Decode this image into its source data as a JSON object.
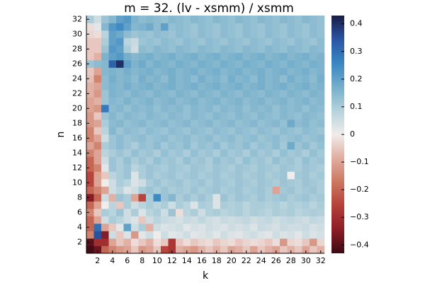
{
  "chart_data": {
    "type": "heatmap",
    "title": "m = 32. (lv - xsmm) / xsmm",
    "x_label": "k",
    "y_label": "n",
    "x": [
      1,
      2,
      3,
      4,
      5,
      6,
      7,
      8,
      9,
      10,
      11,
      12,
      13,
      14,
      15,
      16,
      17,
      18,
      19,
      20,
      21,
      22,
      23,
      24,
      25,
      26,
      27,
      28,
      29,
      30,
      31,
      32
    ],
    "y": [
      1,
      2,
      3,
      4,
      5,
      6,
      7,
      8,
      9,
      10,
      11,
      12,
      13,
      14,
      15,
      16,
      17,
      18,
      19,
      20,
      21,
      22,
      23,
      24,
      25,
      26,
      27,
      28,
      29,
      30,
      31,
      32
    ],
    "xlim": [
      0.5,
      32.5
    ],
    "ylim": [
      0.5,
      32.5
    ],
    "xticks": [
      2,
      4,
      6,
      8,
      10,
      12,
      14,
      16,
      18,
      20,
      22,
      24,
      26,
      28,
      30,
      32
    ],
    "yticks": [
      2,
      4,
      6,
      8,
      10,
      12,
      14,
      16,
      18,
      20,
      22,
      24,
      26,
      28,
      30,
      32
    ],
    "clim": [
      -0.43,
      0.43
    ],
    "cticks": [
      {
        "value": -0.4,
        "label": "−0.4"
      },
      {
        "value": -0.3,
        "label": "−0.3"
      },
      {
        "value": -0.2,
        "label": "−0.2"
      },
      {
        "value": -0.1,
        "label": "−0.1"
      },
      0,
      0.1,
      0.2,
      0.3,
      0.4
    ],
    "colors": [
      "#3c0912",
      "#8c1d26",
      "#b5403a",
      "#cc7760",
      "#e0ada0",
      "#f0eceb",
      "#b5d2dc",
      "#75aecb",
      "#3987c2",
      "#2a55a4",
      "#181c43"
    ],
    "z": [
      [
        -0.42,
        -0.38,
        -0.2,
        -0.15,
        -0.12,
        -0.1,
        -0.05,
        -0.12,
        -0.1,
        -0.05,
        -0.25,
        -0.28,
        -0.08,
        -0.1,
        -0.12,
        -0.08,
        -0.05,
        -0.08,
        -0.05,
        -0.1,
        -0.08,
        -0.05,
        -0.1,
        -0.05,
        -0.08,
        -0.1,
        -0.05,
        -0.08,
        -0.05,
        -0.1,
        -0.05,
        -0.08
      ],
      [
        -0.4,
        -0.3,
        -0.3,
        -0.1,
        -0.05,
        -0.08,
        -0.02,
        -0.05,
        -0.08,
        -0.02,
        -0.05,
        -0.28,
        -0.05,
        -0.02,
        -0.05,
        -0.03,
        -0.02,
        -0.05,
        -0.03,
        -0.02,
        -0.05,
        -0.03,
        -0.02,
        -0.03,
        -0.05,
        -0.02,
        -0.12,
        -0.03,
        -0.02,
        -0.05,
        -0.12,
        -0.03
      ],
      [
        -0.15,
        0.35,
        -0.35,
        0.05,
        -0.05,
        0.03,
        -0.12,
        0.02,
        0.05,
        0.0,
        0.05,
        0.02,
        0.03,
        0.05,
        0.02,
        0.03,
        0.04,
        0.02,
        0.05,
        0.03,
        0.02,
        0.04,
        0.05,
        0.03,
        0.02,
        0.05,
        0.03,
        0.04,
        0.02,
        0.05,
        0.03,
        0.04
      ],
      [
        -0.2,
        0.3,
        -0.1,
        -0.05,
        0.02,
        0.2,
        0.05,
        0.1,
        -0.08,
        0.05,
        0.03,
        0.04,
        0.05,
        0.02,
        0.04,
        0.03,
        0.05,
        0.04,
        0.03,
        0.05,
        0.04,
        0.05,
        0.03,
        0.06,
        0.05,
        0.04,
        0.06,
        0.05,
        0.05,
        0.06,
        0.04,
        0.05
      ],
      [
        -0.2,
        -0.1,
        0.05,
        0.1,
        0.08,
        0.05,
        0.03,
        -0.05,
        0.05,
        0.08,
        0.06,
        0.05,
        0.04,
        0.06,
        0.05,
        0.07,
        0.05,
        0.04,
        0.06,
        0.05,
        0.06,
        0.07,
        0.05,
        0.06,
        0.07,
        0.05,
        0.06,
        0.07,
        0.06,
        0.05,
        0.07,
        0.06
      ],
      [
        -0.15,
        -0.05,
        0.1,
        0.08,
        0.12,
        0.05,
        0.1,
        0.03,
        0.08,
        0.1,
        0.05,
        0.12,
        -0.02,
        0.08,
        0.1,
        0.05,
        0.09,
        0.1,
        0.08,
        0.09,
        0.1,
        0.08,
        0.1,
        0.09,
        0.08,
        0.1,
        0.09,
        0.1,
        0.08,
        0.09,
        0.1,
        0.09
      ],
      [
        -0.2,
        -0.1,
        0.0,
        0.08,
        -0.05,
        0.1,
        0.05,
        0.08,
        0.1,
        0.08,
        0.1,
        0.05,
        0.1,
        0.08,
        0.03,
        0.1,
        0.09,
        0.03,
        0.1,
        0.09,
        0.1,
        0.08,
        0.1,
        0.1,
        0.09,
        0.1,
        0.08,
        0.1,
        0.09,
        0.1,
        0.08,
        0.1
      ],
      [
        -0.35,
        -0.2,
        0.05,
        -0.08,
        0.12,
        0.1,
        -0.1,
        -0.25,
        0.1,
        0.25,
        0.12,
        0.15,
        0.1,
        0.12,
        0.1,
        0.12,
        0.1,
        0.03,
        0.12,
        0.1,
        0.12,
        0.11,
        0.1,
        0.12,
        0.1,
        0.11,
        0.12,
        0.1,
        0.11,
        0.12,
        0.1,
        0.11
      ],
      [
        -0.2,
        -0.15,
        -0.1,
        0.05,
        0.08,
        0.03,
        0.05,
        0.1,
        0.12,
        0.1,
        0.12,
        0.1,
        0.11,
        0.1,
        0.12,
        0.1,
        0.11,
        0.12,
        0.1,
        0.11,
        0.12,
        0.1,
        0.11,
        0.12,
        0.1,
        -0.1,
        0.11,
        0.12,
        0.1,
        0.11,
        0.12,
        0.1
      ],
      [
        -0.25,
        -0.1,
        0.0,
        0.05,
        0.1,
        0.08,
        0.03,
        0.05,
        0.1,
        0.12,
        0.1,
        0.11,
        0.12,
        0.1,
        0.11,
        0.12,
        0.1,
        0.12,
        0.11,
        0.1,
        0.12,
        0.11,
        0.1,
        0.12,
        0.11,
        0.1,
        0.12,
        0.11,
        0.1,
        0.12,
        0.11,
        0.1
      ],
      [
        -0.25,
        -0.1,
        -0.05,
        0.08,
        0.1,
        0.12,
        0.03,
        0.1,
        0.12,
        0.1,
        0.11,
        0.12,
        0.1,
        0.11,
        0.12,
        0.1,
        0.11,
        0.12,
        0.1,
        0.11,
        0.12,
        0.1,
        0.11,
        0.12,
        0.1,
        0.11,
        0.12,
        0.0,
        0.11,
        0.12,
        0.1,
        0.11
      ],
      [
        -0.2,
        -0.15,
        0.02,
        0.12,
        0.1,
        0.12,
        0.08,
        0.1,
        0.12,
        0.11,
        0.1,
        0.12,
        0.11,
        0.1,
        0.12,
        0.11,
        0.1,
        0.12,
        0.11,
        0.1,
        0.12,
        0.11,
        0.1,
        0.12,
        0.11,
        0.1,
        0.12,
        0.11,
        0.1,
        0.12,
        0.11,
        0.1
      ],
      [
        -0.2,
        -0.1,
        0.05,
        0.12,
        0.1,
        0.13,
        0.1,
        0.12,
        0.1,
        0.13,
        0.11,
        0.12,
        0.1,
        0.13,
        0.11,
        0.12,
        0.1,
        0.13,
        0.11,
        0.12,
        0.1,
        0.13,
        0.11,
        0.12,
        0.1,
        0.13,
        0.11,
        0.12,
        0.1,
        0.13,
        0.11,
        0.12
      ],
      [
        -0.15,
        -0.1,
        0.08,
        0.1,
        0.12,
        0.1,
        0.13,
        0.11,
        0.12,
        0.1,
        0.13,
        0.11,
        0.12,
        0.1,
        0.13,
        0.11,
        0.12,
        0.1,
        0.13,
        0.11,
        0.12,
        0.1,
        0.13,
        0.11,
        0.12,
        0.1,
        0.13,
        0.11,
        0.12,
        0.1,
        0.13,
        0.11
      ],
      [
        -0.1,
        -0.15,
        0.1,
        0.12,
        0.14,
        0.12,
        0.1,
        0.13,
        0.12,
        0.14,
        0.11,
        0.13,
        0.12,
        0.14,
        0.11,
        0.13,
        0.12,
        0.14,
        0.11,
        0.13,
        0.12,
        0.14,
        0.11,
        0.13,
        0.12,
        0.14,
        0.11,
        0.18,
        0.12,
        0.14,
        0.11,
        0.13
      ],
      [
        -0.15,
        -0.1,
        0.05,
        0.12,
        0.14,
        0.12,
        0.13,
        0.14,
        0.12,
        0.13,
        0.14,
        0.12,
        0.13,
        0.14,
        0.12,
        0.13,
        0.14,
        0.12,
        0.13,
        0.14,
        0.12,
        0.13,
        0.14,
        0.12,
        0.13,
        0.14,
        0.12,
        0.13,
        0.14,
        0.12,
        0.13,
        0.14
      ],
      [
        -0.15,
        -0.05,
        0.08,
        0.15,
        0.12,
        0.14,
        0.13,
        0.12,
        0.14,
        0.13,
        0.12,
        0.14,
        0.13,
        0.12,
        0.14,
        0.13,
        0.12,
        0.14,
        0.13,
        0.12,
        0.14,
        0.13,
        0.12,
        0.14,
        0.13,
        0.12,
        0.14,
        0.13,
        0.12,
        0.14,
        0.13,
        0.12
      ],
      [
        -0.12,
        -0.1,
        0.1,
        0.14,
        0.15,
        0.13,
        0.14,
        0.15,
        0.13,
        0.14,
        0.15,
        0.13,
        0.14,
        0.15,
        0.13,
        0.14,
        0.15,
        0.13,
        0.14,
        0.15,
        0.13,
        0.14,
        0.15,
        0.13,
        0.14,
        0.15,
        0.13,
        0.18,
        0.14,
        0.15,
        0.13,
        0.14
      ],
      [
        -0.12,
        -0.05,
        0.12,
        0.15,
        0.13,
        0.15,
        0.14,
        0.13,
        0.15,
        0.14,
        0.13,
        0.15,
        0.14,
        0.13,
        0.15,
        0.14,
        0.13,
        0.15,
        0.14,
        0.13,
        0.15,
        0.14,
        0.13,
        0.15,
        0.14,
        0.13,
        0.15,
        0.14,
        0.13,
        0.15,
        0.14,
        0.13
      ],
      [
        -0.1,
        -0.12,
        0.28,
        0.14,
        0.15,
        0.13,
        0.15,
        0.14,
        0.15,
        0.13,
        0.15,
        0.14,
        0.15,
        0.13,
        0.15,
        0.14,
        0.15,
        0.13,
        0.15,
        0.14,
        0.15,
        0.13,
        0.15,
        0.14,
        0.15,
        0.13,
        0.15,
        0.14,
        0.15,
        0.13,
        0.15,
        0.14
      ],
      [
        -0.1,
        -0.08,
        0.12,
        0.15,
        0.14,
        0.16,
        0.14,
        0.15,
        0.16,
        0.14,
        0.15,
        0.16,
        0.14,
        0.15,
        0.16,
        0.14,
        0.15,
        0.16,
        0.14,
        0.15,
        0.16,
        0.14,
        0.15,
        0.16,
        0.14,
        0.15,
        0.16,
        0.14,
        0.15,
        0.16,
        0.14,
        0.15
      ],
      [
        -0.08,
        -0.12,
        0.12,
        0.16,
        0.15,
        0.14,
        0.16,
        0.15,
        0.14,
        0.16,
        0.15,
        0.14,
        0.16,
        0.15,
        0.14,
        0.16,
        0.15,
        0.14,
        0.16,
        0.15,
        0.14,
        0.16,
        0.15,
        0.14,
        0.16,
        0.15,
        0.14,
        0.16,
        0.15,
        0.14,
        0.16,
        0.15
      ],
      [
        -0.08,
        -0.1,
        0.14,
        0.16,
        0.15,
        0.17,
        0.15,
        0.16,
        0.17,
        0.15,
        0.16,
        0.17,
        0.15,
        0.16,
        0.17,
        0.15,
        0.16,
        0.17,
        0.15,
        0.16,
        0.17,
        0.15,
        0.16,
        0.17,
        0.15,
        0.16,
        0.17,
        0.15,
        0.16,
        0.17,
        0.15,
        0.16
      ],
      [
        -0.06,
        -0.15,
        0.14,
        0.17,
        0.15,
        0.16,
        0.14,
        0.17,
        0.15,
        0.16,
        0.14,
        0.17,
        0.15,
        0.16,
        0.14,
        0.17,
        0.15,
        0.16,
        0.14,
        0.17,
        0.15,
        0.16,
        0.14,
        0.17,
        0.15,
        0.16,
        0.14,
        0.17,
        0.15,
        0.16,
        0.14,
        0.17
      ],
      [
        -0.05,
        -0.1,
        0.15,
        0.16,
        0.15,
        0.17,
        0.15,
        0.16,
        0.17,
        0.15,
        0.16,
        0.17,
        0.15,
        0.16,
        0.17,
        0.15,
        0.16,
        0.17,
        0.15,
        0.16,
        0.17,
        0.15,
        0.16,
        0.17,
        0.15,
        0.16,
        0.17,
        0.15,
        0.16,
        0.17,
        0.15,
        0.16
      ],
      [
        0.12,
        0.14,
        0.15,
        0.32,
        0.4,
        0.2,
        0.16,
        0.18,
        0.15,
        0.17,
        0.16,
        0.15,
        0.17,
        0.16,
        0.15,
        0.17,
        0.16,
        0.15,
        0.17,
        0.16,
        0.15,
        0.17,
        0.16,
        0.15,
        0.17,
        0.16,
        0.15,
        0.17,
        0.16,
        0.15,
        0.17,
        0.16
      ],
      [
        -0.05,
        -0.08,
        0.16,
        0.2,
        0.22,
        0.17,
        0.15,
        0.16,
        0.17,
        0.15,
        0.16,
        0.17,
        0.15,
        0.16,
        0.17,
        0.15,
        0.16,
        0.17,
        0.15,
        0.16,
        0.17,
        0.15,
        0.16,
        0.17,
        0.15,
        0.16,
        0.17,
        0.15,
        0.16,
        0.17,
        0.15,
        0.16
      ],
      [
        -0.05,
        -0.05,
        0.12,
        0.22,
        0.2,
        0.1,
        0.05,
        0.14,
        0.13,
        0.15,
        0.14,
        0.13,
        0.15,
        0.14,
        0.13,
        0.15,
        0.14,
        0.13,
        0.15,
        0.14,
        0.13,
        0.15,
        0.14,
        0.13,
        0.15,
        0.14,
        0.13,
        0.15,
        0.14,
        0.13,
        0.15,
        0.14
      ],
      [
        -0.05,
        -0.05,
        0.1,
        0.2,
        0.22,
        0.08,
        0.06,
        0.12,
        0.13,
        0.12,
        0.14,
        0.13,
        0.12,
        0.14,
        0.13,
        0.12,
        0.14,
        0.13,
        0.12,
        0.14,
        0.13,
        0.12,
        0.14,
        0.13,
        0.12,
        0.14,
        0.13,
        0.12,
        0.14,
        0.13,
        0.12,
        0.14
      ],
      [
        -0.03,
        -0.02,
        0.08,
        0.2,
        0.18,
        0.14,
        0.12,
        0.13,
        0.12,
        0.14,
        0.13,
        0.12,
        0.14,
        0.13,
        0.12,
        0.14,
        0.13,
        0.12,
        0.14,
        0.13,
        0.12,
        0.14,
        0.13,
        0.12,
        0.14,
        0.13,
        0.12,
        0.14,
        0.13,
        0.12,
        0.14,
        0.13
      ],
      [
        -0.02,
        0.02,
        0.15,
        0.22,
        0.25,
        0.2,
        0.15,
        0.16,
        0.18,
        0.14,
        0.2,
        0.13,
        0.14,
        0.13,
        0.12,
        0.14,
        0.13,
        0.12,
        0.14,
        0.13,
        0.12,
        0.14,
        0.13,
        0.12,
        0.14,
        0.13,
        0.12,
        0.14,
        0.13,
        0.12,
        0.14,
        0.13
      ],
      [
        0.1,
        0.05,
        0.12,
        0.15,
        0.2,
        0.22,
        0.16,
        0.14,
        0.15,
        0.14,
        0.13,
        0.15,
        0.14,
        0.13,
        0.15,
        0.14,
        0.13,
        0.15,
        0.14,
        0.13,
        0.15,
        0.14,
        0.13,
        0.15,
        0.14,
        0.13,
        0.15,
        0.14,
        0.13,
        0.15,
        0.14,
        0.13
      ]
    ]
  }
}
